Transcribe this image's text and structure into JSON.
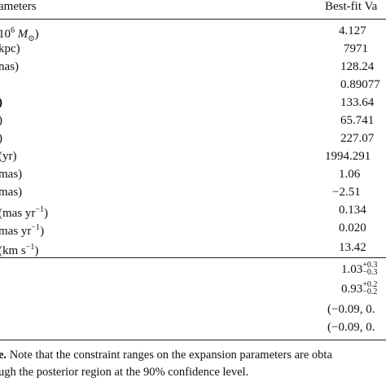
{
  "table": {
    "header": {
      "param": "ameters",
      "value": "Best-fit Va"
    },
    "rows": [
      {
        "param": "10",
        "param_sup": "6",
        "param_tail": " M",
        "param_sub": "⊙",
        "param_end": ")",
        "value": "4.127"
      },
      {
        "param": "kpc)",
        "value": "7971"
      },
      {
        "param": "nas)",
        "value": "128.24"
      },
      {
        "param": "",
        "value": "0.89077"
      },
      {
        "param": ")",
        "value": "133.64"
      },
      {
        "param": ")",
        "value": "65.741"
      },
      {
        "param": ")",
        "value": "227.07"
      },
      {
        "param": " (yr)",
        "value": "1994.291"
      },
      {
        "param": "mas)",
        "value": "1.06"
      },
      {
        "param": "mas)",
        "value": "−2.51"
      },
      {
        "param": "(mas yr",
        "param_sup": "−1",
        "param_end": ")",
        "value": "0.134"
      },
      {
        "param": "mas yr",
        "param_sup": "−1",
        "param_end": ")",
        "value": "0.020"
      },
      {
        "param": "(km s",
        "param_sup": "−1",
        "param_end": ")",
        "value": "13.42"
      }
    ],
    "expansion": [
      {
        "value": "1.03",
        "sup": "+0.3",
        "sub": "−0.3"
      },
      {
        "value": "0.93",
        "sup": "+0.2",
        "sub": "−0.2"
      },
      {
        "value": "(−0.09, 0."
      },
      {
        "value": "(−0.09, 0."
      }
    ]
  },
  "caption": {
    "line1_bold": "e.",
    "line1_text": " Note that the constraint ranges on the expansion parameters are obta",
    "line2_text": "ugh the posterior region at the 90% confidence level."
  }
}
